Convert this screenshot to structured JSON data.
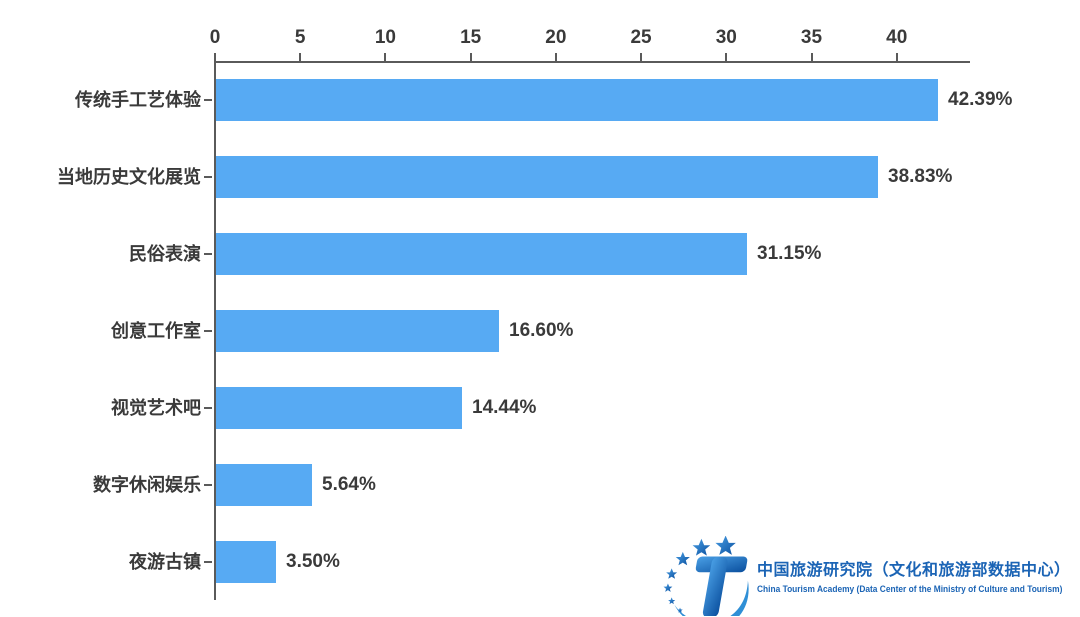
{
  "chart_data": {
    "type": "bar",
    "orientation": "horizontal",
    "title": "",
    "xlabel": "",
    "ylabel": "",
    "categories": [
      "传统手工艺体验",
      "当地历史文化展览",
      "民俗表演",
      "创意工作室",
      "视觉艺术吧",
      "数字休闲娱乐",
      "夜游古镇"
    ],
    "values": [
      42.39,
      38.83,
      31.15,
      16.6,
      14.44,
      5.64,
      3.5
    ],
    "value_labels": [
      "42.39%",
      "38.83%",
      "31.15%",
      "16.60%",
      "14.44%",
      "5.64%",
      "3.50%"
    ],
    "x_ticks": [
      0,
      5,
      10,
      15,
      20,
      25,
      30,
      35,
      40
    ],
    "xlim": [
      0,
      44.3
    ],
    "grid": false,
    "value_axis_position": "top",
    "bar_color": "#57aaf3",
    "axis_color": "#5a5a5a",
    "label_color": "#3a3a3a"
  },
  "branding": {
    "logo_icon": "china-tourism-academy-logo",
    "name_zh": "中国旅游研究院（文化和旅游部数据中心）",
    "name_en": "China Tourism Academy (Data Center of the Ministry of Culture and Tourism)",
    "brand_color": "#1b64b5"
  }
}
